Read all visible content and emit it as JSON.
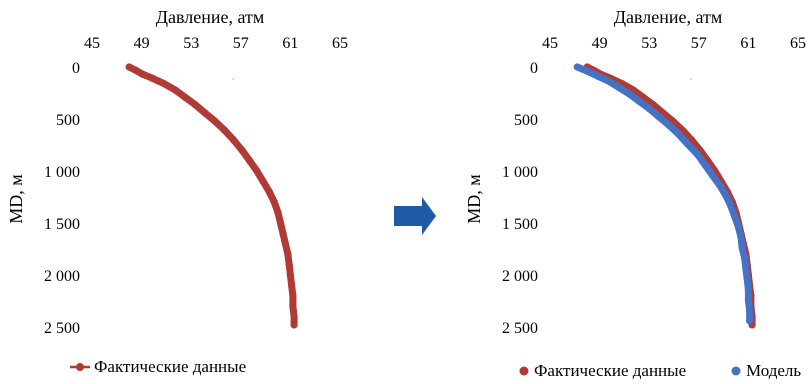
{
  "colors": {
    "actual": "#b03a35",
    "model": "#4472c4",
    "arrow": "#1f5aa6",
    "axis": "#a6a6a6"
  },
  "arrow": {
    "icon": "right-arrow-icon"
  },
  "chart_data": [
    {
      "type": "scatter",
      "xlabel": "Давление, атм",
      "ylabel": "MD, м",
      "x_axis_position": "top",
      "y_reversed": true,
      "xlim": [
        45,
        65
      ],
      "x_ticks": [
        "45",
        "49",
        "53",
        "57",
        "61",
        "65"
      ],
      "x_tick_values": [
        45,
        49,
        53,
        57,
        61,
        65
      ],
      "ylim": [
        0,
        2500
      ],
      "y_ticks": [
        "0",
        "500",
        "1 000",
        "1 500",
        "2 000",
        "2 500"
      ],
      "y_tick_values": [
        0,
        500,
        1000,
        1500,
        2000,
        2500
      ],
      "grid": false,
      "legend_position": "bottom",
      "series": [
        {
          "name": "Фактические данные",
          "color_key": "actual",
          "style": "line-markers",
          "points": [
            [
              48.0,
              0
            ],
            [
              48.5,
              30
            ],
            [
              49.1,
              70
            ],
            [
              49.9,
              110
            ],
            [
              50.8,
              160
            ],
            [
              51.7,
              220
            ],
            [
              52.5,
              290
            ],
            [
              53.3,
              360
            ],
            [
              54.1,
              440
            ],
            [
              54.9,
              520
            ],
            [
              55.7,
              610
            ],
            [
              56.4,
              700
            ],
            [
              57.1,
              800
            ],
            [
              57.7,
              900
            ],
            [
              58.3,
              1000
            ],
            [
              58.8,
              1100
            ],
            [
              59.3,
              1200
            ],
            [
              59.7,
              1300
            ],
            [
              60.0,
              1400
            ],
            [
              60.2,
              1500
            ],
            [
              60.4,
              1600
            ],
            [
              60.6,
              1700
            ],
            [
              60.8,
              1800
            ],
            [
              60.9,
              1900
            ],
            [
              61.0,
              2000
            ],
            [
              61.1,
              2100
            ],
            [
              61.2,
              2200
            ],
            [
              61.2,
              2300
            ],
            [
              61.3,
              2400
            ],
            [
              61.3,
              2480
            ]
          ]
        }
      ]
    },
    {
      "type": "scatter",
      "xlabel": "Давление, атм",
      "ylabel": "MD, м",
      "x_axis_position": "top",
      "y_reversed": true,
      "xlim": [
        45,
        65
      ],
      "x_ticks": [
        "45",
        "49",
        "53",
        "57",
        "61",
        "65"
      ],
      "x_tick_values": [
        45,
        49,
        53,
        57,
        61,
        65
      ],
      "ylim": [
        0,
        2500
      ],
      "y_ticks": [
        "0",
        "500",
        "1 000",
        "1 500",
        "2 000",
        "2 500"
      ],
      "y_tick_values": [
        0,
        500,
        1000,
        1500,
        2000,
        2500
      ],
      "grid": false,
      "legend_position": "bottom",
      "series": [
        {
          "name": "Фактические данные",
          "color_key": "actual",
          "style": "markers",
          "points": [
            [
              48.0,
              0
            ],
            [
              48.5,
              30
            ],
            [
              49.1,
              70
            ],
            [
              49.9,
              110
            ],
            [
              50.8,
              160
            ],
            [
              51.7,
              220
            ],
            [
              52.5,
              290
            ],
            [
              53.3,
              360
            ],
            [
              54.1,
              440
            ],
            [
              54.9,
              520
            ],
            [
              55.7,
              610
            ],
            [
              56.4,
              700
            ],
            [
              57.1,
              800
            ],
            [
              57.7,
              900
            ],
            [
              58.3,
              1000
            ],
            [
              58.8,
              1100
            ],
            [
              59.3,
              1200
            ],
            [
              59.7,
              1300
            ],
            [
              60.0,
              1400
            ],
            [
              60.2,
              1500
            ],
            [
              60.4,
              1600
            ],
            [
              60.6,
              1700
            ],
            [
              60.8,
              1800
            ],
            [
              60.9,
              1900
            ],
            [
              61.0,
              2000
            ],
            [
              61.1,
              2100
            ],
            [
              61.2,
              2200
            ],
            [
              61.2,
              2300
            ],
            [
              61.3,
              2400
            ],
            [
              61.3,
              2480
            ]
          ]
        },
        {
          "name": "Модель",
          "color_key": "model",
          "style": "markers",
          "points": [
            [
              47.2,
              0
            ],
            [
              48.0,
              40
            ],
            [
              48.9,
              90
            ],
            [
              49.8,
              140
            ],
            [
              50.6,
              200
            ],
            [
              51.4,
              260
            ],
            [
              52.2,
              330
            ],
            [
              53.0,
              400
            ],
            [
              53.8,
              480
            ],
            [
              54.6,
              560
            ],
            [
              55.4,
              650
            ],
            [
              56.1,
              740
            ],
            [
              56.9,
              840
            ],
            [
              57.5,
              940
            ],
            [
              58.1,
              1040
            ],
            [
              58.7,
              1140
            ],
            [
              59.2,
              1240
            ],
            [
              59.6,
              1340
            ],
            [
              59.9,
              1440
            ],
            [
              60.2,
              1540
            ],
            [
              60.4,
              1640
            ],
            [
              60.5,
              1740
            ],
            [
              60.7,
              1840
            ],
            [
              60.8,
              1940
            ],
            [
              60.9,
              2040
            ],
            [
              61.0,
              2140
            ],
            [
              61.0,
              2240
            ],
            [
              61.1,
              2340
            ],
            [
              61.1,
              2440
            ]
          ]
        }
      ]
    }
  ]
}
